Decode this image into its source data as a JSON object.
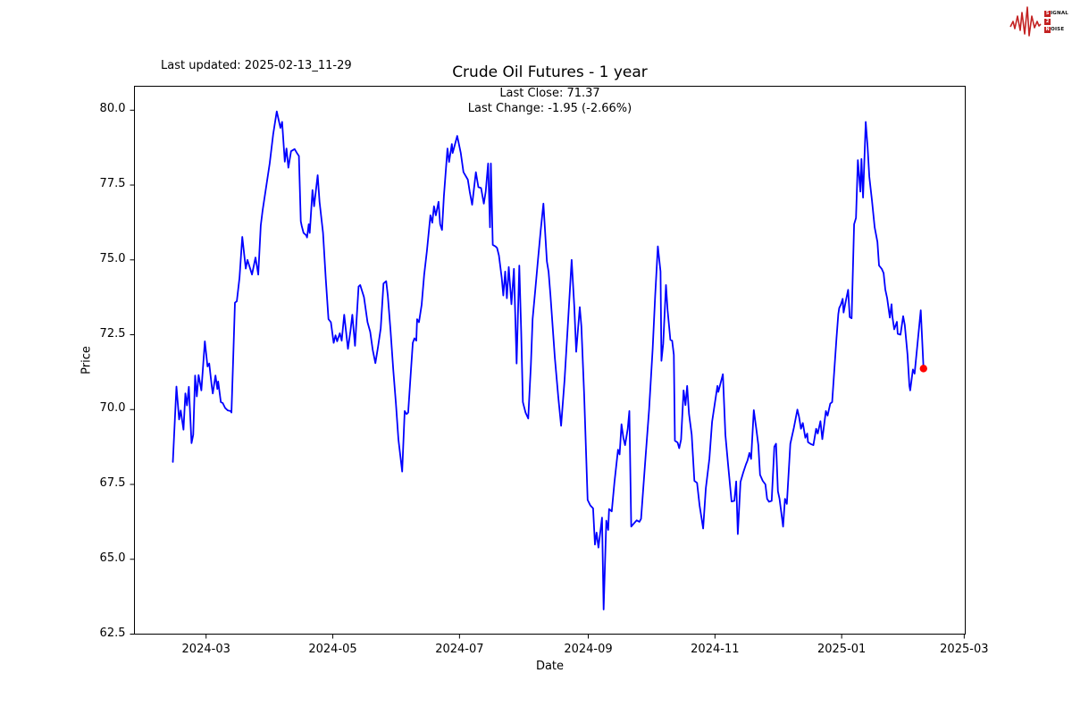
{
  "header": {
    "last_updated": "Last updated: 2025-02-13_11-29"
  },
  "logo": {
    "rows": [
      {
        "boxed": "S",
        "rest": "IGNAL"
      },
      {
        "boxed": "2",
        "rest": ""
      },
      {
        "boxed": "N",
        "rest": "OISE"
      }
    ],
    "waveform_color": "#c32222"
  },
  "chart_data": {
    "type": "line",
    "title": "Crude Oil Futures - 1 year",
    "subtitle_line1": "Last Close: 71.37",
    "subtitle_line2": "Last Change: -1.95 (-2.66%)",
    "xlabel": "Date",
    "ylabel": "Price",
    "last_close": 71.37,
    "last_change": "-1.95 (-2.66%)",
    "line_color": "#0000ff",
    "last_point_color": "#ff0000",
    "axis_color": "#000000",
    "x_unit": "days since 2024-02-14",
    "xlim_days": [
      -18.5,
      381.5
    ],
    "ylim": [
      62.5,
      80.8
    ],
    "yticks": [
      62.5,
      65.0,
      67.5,
      70.0,
      72.5,
      75.0,
      77.5,
      80.0
    ],
    "xticks": [
      {
        "day": 16,
        "label": "2024-03"
      },
      {
        "day": 77,
        "label": "2024-05"
      },
      {
        "day": 138,
        "label": "2024-07"
      },
      {
        "day": 200,
        "label": "2024-09"
      },
      {
        "day": 261,
        "label": "2024-11"
      },
      {
        "day": 322,
        "label": "2025-01"
      },
      {
        "day": 381,
        "label": "2025-03"
      }
    ],
    "points": [
      [
        0,
        68.25
      ],
      [
        1.7,
        70.77
      ],
      [
        3,
        69.67
      ],
      [
        3.8,
        69.97
      ],
      [
        5.1,
        69.33
      ],
      [
        6,
        70.54
      ],
      [
        6.8,
        70.14
      ],
      [
        7.7,
        70.76
      ],
      [
        9,
        68.88
      ],
      [
        9.8,
        69.16
      ],
      [
        10.7,
        71.14
      ],
      [
        11.5,
        70.44
      ],
      [
        12.4,
        71.15
      ],
      [
        13.7,
        70.64
      ],
      [
        15.4,
        72.28
      ],
      [
        16.7,
        71.44
      ],
      [
        17.5,
        71.54
      ],
      [
        18.8,
        70.74
      ],
      [
        19.2,
        70.54
      ],
      [
        20.5,
        71.14
      ],
      [
        21.4,
        70.69
      ],
      [
        21.8,
        70.94
      ],
      [
        23.1,
        70.25
      ],
      [
        24,
        70.22
      ],
      [
        25.2,
        70.05
      ],
      [
        26.5,
        69.97
      ],
      [
        27.8,
        69.95
      ],
      [
        28.2,
        69.9
      ],
      [
        29.1,
        71.85
      ],
      [
        29.9,
        73.57
      ],
      [
        30.8,
        73.62
      ],
      [
        32.1,
        74.4
      ],
      [
        33.4,
        75.77
      ],
      [
        35.1,
        74.71
      ],
      [
        35.9,
        75.0
      ],
      [
        38.1,
        74.51
      ],
      [
        39.8,
        75.08
      ],
      [
        41.1,
        74.51
      ],
      [
        42.3,
        76.15
      ],
      [
        43.2,
        76.66
      ],
      [
        46.6,
        78.22
      ],
      [
        48.3,
        79.2
      ],
      [
        50,
        79.96
      ],
      [
        51.8,
        79.41
      ],
      [
        52.6,
        79.61
      ],
      [
        53.9,
        78.28
      ],
      [
        54.7,
        78.72
      ],
      [
        55.6,
        78.08
      ],
      [
        56.9,
        78.63
      ],
      [
        58.6,
        78.7
      ],
      [
        59.9,
        78.55
      ],
      [
        60.7,
        78.47
      ],
      [
        61.6,
        76.29
      ],
      [
        62,
        76.14
      ],
      [
        62.9,
        75.9
      ],
      [
        64.2,
        75.82
      ],
      [
        64.6,
        75.75
      ],
      [
        65.4,
        76.19
      ],
      [
        65.9,
        75.9
      ],
      [
        67.2,
        77.33
      ],
      [
        68,
        76.79
      ],
      [
        69.7,
        77.83
      ],
      [
        70.6,
        76.94
      ],
      [
        72.3,
        75.9
      ],
      [
        73.6,
        74.4
      ],
      [
        74.9,
        73.02
      ],
      [
        76.1,
        72.92
      ],
      [
        77.4,
        72.23
      ],
      [
        78.3,
        72.48
      ],
      [
        79.1,
        72.28
      ],
      [
        80.4,
        72.55
      ],
      [
        81.3,
        72.3
      ],
      [
        82.5,
        73.17
      ],
      [
        84.3,
        72.03
      ],
      [
        85.5,
        72.63
      ],
      [
        86.4,
        73.17
      ],
      [
        87.7,
        72.13
      ],
      [
        89.4,
        74.11
      ],
      [
        90.2,
        74.16
      ],
      [
        92,
        73.76
      ],
      [
        93.7,
        72.92
      ],
      [
        95,
        72.6
      ],
      [
        96.2,
        72.0
      ],
      [
        97.5,
        71.55
      ],
      [
        98.8,
        72.1
      ],
      [
        100.1,
        72.72
      ],
      [
        101.4,
        74.21
      ],
      [
        102.7,
        74.29
      ],
      [
        103.5,
        73.81
      ],
      [
        104.8,
        72.63
      ],
      [
        106.1,
        71.34
      ],
      [
        107.4,
        70.2
      ],
      [
        108.6,
        69.0
      ],
      [
        110.4,
        67.93
      ],
      [
        111.2,
        69.3
      ],
      [
        111.6,
        69.95
      ],
      [
        112.5,
        69.85
      ],
      [
        113.3,
        69.9
      ],
      [
        114.6,
        71.3
      ],
      [
        115.5,
        72.23
      ],
      [
        116.3,
        72.38
      ],
      [
        117.2,
        72.3
      ],
      [
        117.6,
        73.02
      ],
      [
        118.5,
        72.92
      ],
      [
        119.8,
        73.5
      ],
      [
        121,
        74.5
      ],
      [
        122.3,
        75.3
      ],
      [
        124,
        76.49
      ],
      [
        124.9,
        76.24
      ],
      [
        125.7,
        76.79
      ],
      [
        126.6,
        76.49
      ],
      [
        127.9,
        76.94
      ],
      [
        128.7,
        76.19
      ],
      [
        129.6,
        76.0
      ],
      [
        130.5,
        77.13
      ],
      [
        132.2,
        78.72
      ],
      [
        133,
        78.27
      ],
      [
        134.3,
        78.87
      ],
      [
        134.7,
        78.57
      ],
      [
        136.9,
        79.14
      ],
      [
        138.6,
        78.57
      ],
      [
        139.9,
        77.93
      ],
      [
        142,
        77.68
      ],
      [
        142.9,
        77.28
      ],
      [
        144.1,
        76.84
      ],
      [
        145.9,
        77.93
      ],
      [
        147.1,
        77.43
      ],
      [
        148.4,
        77.4
      ],
      [
        149.7,
        76.88
      ],
      [
        150.6,
        77.28
      ],
      [
        151.8,
        78.22
      ],
      [
        152.7,
        76.09
      ],
      [
        153.1,
        78.22
      ],
      [
        154,
        75.5
      ],
      [
        155.3,
        75.45
      ],
      [
        156.1,
        75.4
      ],
      [
        157,
        75.15
      ],
      [
        158.3,
        74.41
      ],
      [
        159.1,
        73.81
      ],
      [
        160,
        74.61
      ],
      [
        160.8,
        73.72
      ],
      [
        161.7,
        74.76
      ],
      [
        163,
        73.52
      ],
      [
        164.2,
        74.7
      ],
      [
        165.5,
        71.54
      ],
      [
        166.8,
        74.81
      ],
      [
        167.7,
        72.63
      ],
      [
        168.5,
        70.25
      ],
      [
        169.8,
        69.9
      ],
      [
        171.1,
        69.7
      ],
      [
        172.4,
        71.5
      ],
      [
        173.2,
        73.02
      ],
      [
        174.5,
        74.0
      ],
      [
        175.8,
        75.0
      ],
      [
        177.1,
        76.0
      ],
      [
        178.4,
        76.88
      ],
      [
        180.1,
        74.95
      ],
      [
        180.9,
        74.6
      ],
      [
        181.8,
        73.81
      ],
      [
        183.9,
        71.73
      ],
      [
        185.6,
        70.4
      ],
      [
        186.9,
        69.46
      ],
      [
        188.6,
        71.0
      ],
      [
        190.3,
        73.0
      ],
      [
        192,
        75.0
      ],
      [
        193.3,
        73.42
      ],
      [
        194.2,
        71.93
      ],
      [
        195.9,
        73.42
      ],
      [
        196.7,
        72.78
      ],
      [
        198,
        70.5
      ],
      [
        199.7,
        66.98
      ],
      [
        201,
        66.8
      ],
      [
        202.3,
        66.7
      ],
      [
        203.2,
        65.49
      ],
      [
        204,
        65.89
      ],
      [
        204.9,
        65.39
      ],
      [
        206.6,
        66.39
      ],
      [
        207.4,
        63.32
      ],
      [
        208.7,
        66.29
      ],
      [
        209.6,
        65.98
      ],
      [
        210,
        66.68
      ],
      [
        211.3,
        66.6
      ],
      [
        212.6,
        67.57
      ],
      [
        214.3,
        68.66
      ],
      [
        215.1,
        68.5
      ],
      [
        216,
        69.51
      ],
      [
        216.9,
        69.06
      ],
      [
        217.7,
        68.81
      ],
      [
        219,
        69.36
      ],
      [
        219.8,
        69.95
      ],
      [
        220.7,
        66.09
      ],
      [
        222,
        66.2
      ],
      [
        223.3,
        66.3
      ],
      [
        224.6,
        66.25
      ],
      [
        225.4,
        66.35
      ],
      [
        227.5,
        68.36
      ],
      [
        229.3,
        70.0
      ],
      [
        231,
        72.03
      ],
      [
        232.2,
        73.8
      ],
      [
        233.5,
        75.45
      ],
      [
        234.8,
        74.61
      ],
      [
        235.2,
        71.63
      ],
      [
        236.1,
        72.2
      ],
      [
        237.4,
        74.16
      ],
      [
        238.2,
        73.32
      ],
      [
        239.5,
        72.33
      ],
      [
        240.4,
        72.3
      ],
      [
        241.2,
        71.83
      ],
      [
        241.7,
        68.96
      ],
      [
        243,
        68.9
      ],
      [
        243.8,
        68.71
      ],
      [
        244.7,
        69.0
      ],
      [
        245.9,
        70.64
      ],
      [
        246.8,
        70.15
      ],
      [
        247.6,
        70.79
      ],
      [
        248.5,
        69.85
      ],
      [
        249.8,
        69.16
      ],
      [
        251.1,
        67.62
      ],
      [
        252.4,
        67.55
      ],
      [
        253.6,
        66.8
      ],
      [
        255.3,
        66.03
      ],
      [
        256.6,
        67.37
      ],
      [
        258.3,
        68.36
      ],
      [
        259.6,
        69.59
      ],
      [
        262.2,
        70.79
      ],
      [
        262.6,
        70.59
      ],
      [
        264.8,
        71.18
      ],
      [
        266,
        69.16
      ],
      [
        267.3,
        68.17
      ],
      [
        269,
        66.93
      ],
      [
        270.3,
        66.95
      ],
      [
        271.2,
        67.6
      ],
      [
        272,
        65.84
      ],
      [
        273.3,
        67.58
      ],
      [
        274.6,
        67.9
      ],
      [
        275.9,
        68.17
      ],
      [
        276.7,
        68.3
      ],
      [
        277.6,
        68.55
      ],
      [
        278.4,
        68.35
      ],
      [
        279.7,
        69.98
      ],
      [
        281,
        69.31
      ],
      [
        281.9,
        68.81
      ],
      [
        282.7,
        67.82
      ],
      [
        284,
        67.62
      ],
      [
        285.3,
        67.5
      ],
      [
        286.1,
        67.02
      ],
      [
        287,
        66.92
      ],
      [
        288.3,
        66.95
      ],
      [
        289.6,
        68.76
      ],
      [
        290.4,
        68.86
      ],
      [
        291.3,
        67.27
      ],
      [
        292.1,
        67.02
      ],
      [
        293.8,
        66.09
      ],
      [
        294.7,
        67.02
      ],
      [
        295.6,
        66.85
      ],
      [
        297.3,
        68.86
      ],
      [
        299,
        69.4
      ],
      [
        300.7,
        70.0
      ],
      [
        301.5,
        69.75
      ],
      [
        302.4,
        69.36
      ],
      [
        303.3,
        69.55
      ],
      [
        304.5,
        69.06
      ],
      [
        305.4,
        69.2
      ],
      [
        305.8,
        68.91
      ],
      [
        307.1,
        68.85
      ],
      [
        308.4,
        68.81
      ],
      [
        309.7,
        69.36
      ],
      [
        310.5,
        69.2
      ],
      [
        311.8,
        69.61
      ],
      [
        312.7,
        69.01
      ],
      [
        314.4,
        69.95
      ],
      [
        315.2,
        69.8
      ],
      [
        316.5,
        70.2
      ],
      [
        317.4,
        70.25
      ],
      [
        319.5,
        72.4
      ],
      [
        320.4,
        73.19
      ],
      [
        320.8,
        73.39
      ],
      [
        321.6,
        73.5
      ],
      [
        322.5,
        73.7
      ],
      [
        322.9,
        73.24
      ],
      [
        324.2,
        73.7
      ],
      [
        325.1,
        74.0
      ],
      [
        325.9,
        73.09
      ],
      [
        326.8,
        73.05
      ],
      [
        328,
        76.19
      ],
      [
        328.9,
        76.4
      ],
      [
        329.8,
        78.33
      ],
      [
        331,
        77.28
      ],
      [
        331.5,
        78.37
      ],
      [
        332.3,
        77.08
      ],
      [
        333.6,
        79.61
      ],
      [
        334.5,
        78.77
      ],
      [
        335.3,
        77.78
      ],
      [
        336.6,
        76.98
      ],
      [
        337.9,
        76.09
      ],
      [
        339.2,
        75.6
      ],
      [
        340,
        74.81
      ],
      [
        341.3,
        74.7
      ],
      [
        342.2,
        74.56
      ],
      [
        343,
        74.01
      ],
      [
        343.9,
        73.72
      ],
      [
        345.2,
        73.07
      ],
      [
        346,
        73.52
      ],
      [
        346.4,
        73.12
      ],
      [
        347.3,
        72.68
      ],
      [
        348.6,
        72.93
      ],
      [
        349,
        72.53
      ],
      [
        350.3,
        72.5
      ],
      [
        351.6,
        73.12
      ],
      [
        352.4,
        72.83
      ],
      [
        353.7,
        71.83
      ],
      [
        354.6,
        70.79
      ],
      [
        355,
        70.64
      ],
      [
        356.3,
        71.34
      ],
      [
        357.1,
        71.2
      ],
      [
        360.1,
        73.32
      ],
      [
        361.4,
        71.37
      ]
    ]
  }
}
